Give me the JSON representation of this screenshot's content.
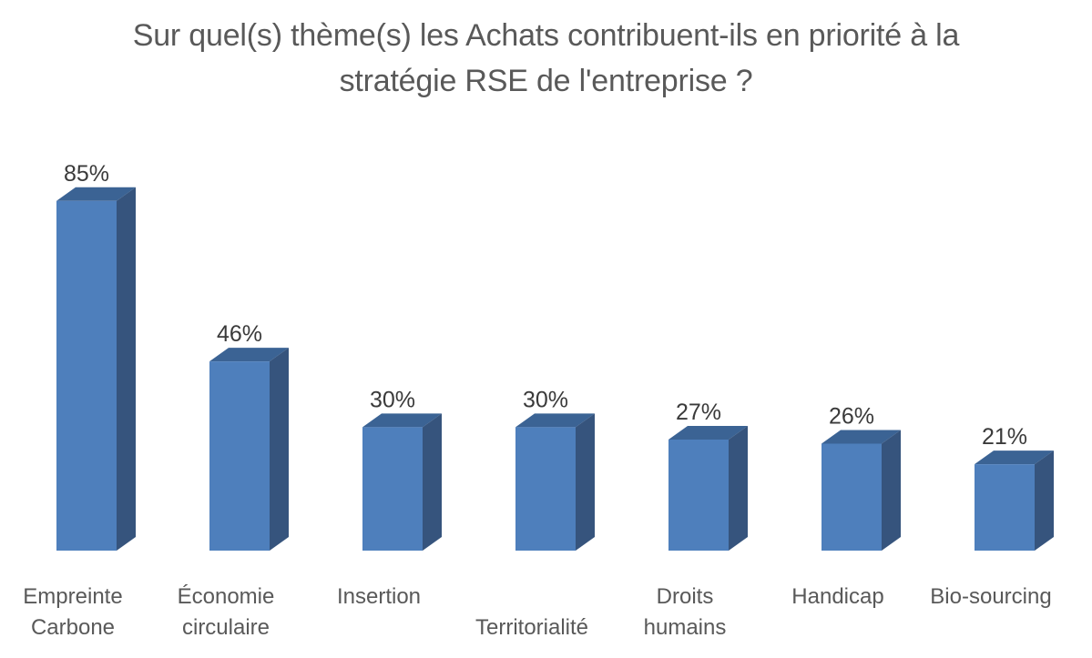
{
  "chart_data": {
    "type": "bar",
    "style": "3d-column",
    "title": "Sur quel(s) thème(s) les Achats contribuent-ils en priorité à la stratégie RSE de l'entreprise ?",
    "title_lines": [
      "Sur quel(s) thème(s) les Achats contribuent-ils en priorité à la",
      "stratégie RSE de l'entreprise ?"
    ],
    "categories": [
      "Empreinte Carbone",
      "Économie circulaire",
      "Insertion",
      "Territorialité",
      "Droits humains",
      "Handicap",
      "Bio-sourcing"
    ],
    "values": [
      85,
      46,
      30,
      30,
      27,
      26,
      21
    ],
    "value_labels": [
      "85%",
      "46%",
      "30%",
      "30%",
      "27%",
      "26%",
      "21%"
    ],
    "category_label_lines": [
      [
        {
          "text": "Empreinte",
          "row": 1
        },
        {
          "text": "Carbone",
          "row": 2
        }
      ],
      [
        {
          "text": "Économie",
          "row": 1
        },
        {
          "text": "circulaire",
          "row": 2
        }
      ],
      [
        {
          "text": "Insertion",
          "row": 1
        }
      ],
      [
        {
          "text": "Territorialité",
          "row": 2
        }
      ],
      [
        {
          "text": "Droits",
          "row": 1
        },
        {
          "text": "humains",
          "row": 2
        }
      ],
      [
        {
          "text": "Handicap",
          "row": 1
        }
      ],
      [
        {
          "text": "Bio-sourcing",
          "row": 1
        }
      ]
    ],
    "unit": "%",
    "ylim": [
      0,
      100
    ],
    "grid": false,
    "legend": null,
    "axes_visible": false,
    "colors": {
      "bar_front": "#4e7fbc",
      "bar_top": "#3b6394",
      "bar_side": "#36547d",
      "value_label_text": "#3a3a3a",
      "category_label_text": "#595959",
      "title_text": "#595959",
      "background": "#ffffff"
    }
  }
}
